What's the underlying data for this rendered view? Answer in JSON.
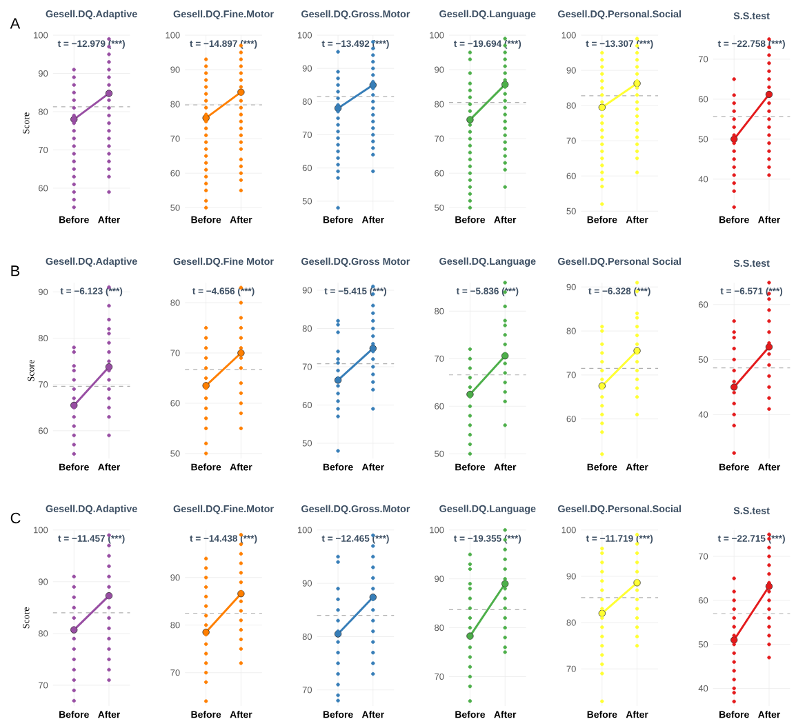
{
  "chart_data": [
    {
      "type": "line",
      "title": "Gesell.DQ.Adaptive",
      "ylabel": "Score",
      "categories": [
        "Before",
        "After"
      ],
      "ylim": [
        54,
        100
      ],
      "yticks": [
        60,
        70,
        80,
        90,
        100
      ],
      "grid": true,
      "marker": "circle",
      "annotations": [
        "t = −12.979 (***)",
        "A"
      ],
      "ref_lines": [
        {
          "axis": "y",
          "value": 81.3,
          "color": "#b0b0b0",
          "line_style": "dashed"
        }
      ],
      "series": [
        {
          "type": "scatter",
          "color": "#984ea3",
          "x": [
            "Before",
            "Before",
            "Before",
            "Before",
            "Before",
            "Before",
            "Before",
            "Before",
            "Before",
            "Before",
            "Before",
            "Before",
            "Before",
            "Before",
            "Before",
            "Before",
            "Before",
            "Before",
            "Before",
            "After",
            "After",
            "After",
            "After",
            "After",
            "After",
            "After",
            "After",
            "After",
            "After",
            "After",
            "After",
            "After",
            "After",
            "After",
            "After",
            "After",
            "After",
            "After"
          ],
          "values": [
            55,
            57,
            59,
            61,
            63,
            65,
            67,
            69,
            71,
            73,
            75,
            77,
            79,
            81,
            83,
            85,
            87,
            89,
            91,
            59,
            63,
            65,
            67,
            69,
            71,
            73,
            75,
            77,
            79,
            81,
            83,
            87,
            89,
            91,
            93,
            95,
            97,
            99
          ]
        },
        {
          "color": "#984ea3",
          "values": [
            78,
            84.8
          ]
        }
      ]
    },
    {
      "type": "line",
      "title": "Gesell.DQ.Fine.Motor",
      "categories": [
        "Before",
        "After"
      ],
      "ylim": [
        49,
        100
      ],
      "yticks": [
        50,
        60,
        70,
        80,
        90,
        100
      ],
      "grid": true,
      "marker": "circle",
      "annotations": [
        "t = −14.897 (***)"
      ],
      "ref_lines": [
        {
          "axis": "y",
          "value": 79.8,
          "color": "#b0b0b0",
          "line_style": "dashed"
        }
      ],
      "series": [
        {
          "type": "scatter",
          "color": "#ff7f00",
          "x": [
            "Before",
            "Before",
            "Before",
            "Before",
            "Before",
            "Before",
            "Before",
            "Before",
            "Before",
            "Before",
            "Before",
            "Before",
            "Before",
            "Before",
            "Before",
            "Before",
            "Before",
            "Before",
            "Before",
            "Before",
            "Before",
            "Before",
            "After",
            "After",
            "After",
            "After",
            "After",
            "After",
            "After",
            "After",
            "After",
            "After",
            "After",
            "After",
            "After",
            "After",
            "After",
            "After",
            "After",
            "After",
            "After",
            "After",
            "After"
          ],
          "values": [
            50,
            52,
            55,
            57,
            59,
            61,
            63,
            65,
            67,
            69,
            71,
            73,
            75,
            77,
            79,
            81,
            83,
            85,
            87,
            89,
            91,
            93,
            55,
            58,
            60,
            62,
            64,
            67,
            69,
            71,
            73,
            75,
            77,
            79,
            81,
            83,
            85,
            87,
            89,
            91,
            93,
            95,
            97
          ]
        },
        {
          "color": "#ff7f00",
          "values": [
            76,
            83.5
          ]
        }
      ]
    },
    {
      "type": "line",
      "title": "Gesell.DQ.Gross.Motor",
      "categories": [
        "Before",
        "After"
      ],
      "ylim": [
        47,
        100
      ],
      "yticks": [
        50,
        60,
        70,
        80,
        90,
        100
      ],
      "grid": true,
      "marker": "circle",
      "annotations": [
        "t = −13.492 (***)"
      ],
      "ref_lines": [
        {
          "axis": "y",
          "value": 81.5,
          "color": "#b0b0b0",
          "line_style": "dashed"
        }
      ],
      "series": [
        {
          "type": "scatter",
          "color": "#377eb8",
          "x": [
            "Before",
            "Before",
            "Before",
            "Before",
            "Before",
            "Before",
            "Before",
            "Before",
            "Before",
            "Before",
            "Before",
            "Before",
            "Before",
            "Before",
            "Before",
            "Before",
            "Before",
            "Before",
            "Before",
            "After",
            "After",
            "After",
            "After",
            "After",
            "After",
            "After",
            "After",
            "After",
            "After",
            "After",
            "After",
            "After",
            "After",
            "After",
            "After",
            "After",
            "After",
            "After"
          ],
          "values": [
            48,
            57,
            59,
            61,
            63,
            65,
            67,
            69,
            71,
            73,
            75,
            77,
            79,
            81,
            83,
            85,
            87,
            89,
            95,
            59,
            64,
            66,
            68,
            70,
            72,
            74,
            76,
            78,
            80,
            82,
            84,
            86,
            88,
            90,
            92,
            94,
            96,
            98
          ]
        },
        {
          "color": "#377eb8",
          "values": [
            78,
            85
          ]
        }
      ]
    },
    {
      "type": "line",
      "title": "Gesell.DQ.Language",
      "categories": [
        "Before",
        "After"
      ],
      "ylim": [
        49,
        100
      ],
      "yticks": [
        50,
        60,
        70,
        80,
        90,
        100
      ],
      "grid": true,
      "marker": "circle",
      "annotations": [
        "t = −19.694 (***)"
      ],
      "ref_lines": [
        {
          "axis": "y",
          "value": 80.5,
          "color": "#b0b0b0",
          "line_style": "dashed"
        }
      ],
      "series": [
        {
          "type": "scatter",
          "color": "#4daf4a",
          "x": [
            "Before",
            "Before",
            "Before",
            "Before",
            "Before",
            "Before",
            "Before",
            "Before",
            "Before",
            "Before",
            "Before",
            "Before",
            "Before",
            "Before",
            "Before",
            "Before",
            "Before",
            "Before",
            "Before",
            "Before",
            "Before",
            "Before",
            "After",
            "After",
            "After",
            "After",
            "After",
            "After",
            "After",
            "After",
            "After",
            "After",
            "After",
            "After",
            "After",
            "After",
            "After",
            "After",
            "After",
            "After",
            "After",
            "After",
            "After"
          ],
          "values": [
            50,
            52,
            54,
            56,
            58,
            60,
            62,
            64,
            66,
            68,
            70,
            72,
            74,
            76,
            78,
            80,
            82,
            84,
            86,
            89,
            93,
            95,
            56,
            61,
            63,
            65,
            67,
            69,
            71,
            73,
            75,
            77,
            79,
            81,
            83,
            85,
            87,
            89,
            91,
            93,
            95,
            97,
            99
          ]
        },
        {
          "color": "#4daf4a",
          "values": [
            75.5,
            85.7
          ]
        }
      ]
    },
    {
      "type": "line",
      "title": "Gesell.DQ.Personal.Social",
      "categories": [
        "Before",
        "After"
      ],
      "ylim": [
        50,
        100
      ],
      "yticks": [
        50,
        60,
        70,
        80,
        90,
        100
      ],
      "grid": true,
      "marker": "circle",
      "annotations": [
        "t = −13.307 (***)"
      ],
      "ref_lines": [
        {
          "axis": "y",
          "value": 82.8,
          "color": "#b0b0b0",
          "line_style": "dashed"
        }
      ],
      "series": [
        {
          "type": "scatter",
          "color": "#ffff33",
          "x": [
            "Before",
            "Before",
            "Before",
            "Before",
            "Before",
            "Before",
            "Before",
            "Before",
            "Before",
            "Before",
            "Before",
            "Before",
            "Before",
            "Before",
            "Before",
            "Before",
            "Before",
            "Before",
            "Before",
            "Before",
            "Before",
            "After",
            "After",
            "After",
            "After",
            "After",
            "After",
            "After",
            "After",
            "After",
            "After",
            "After",
            "After",
            "After",
            "After",
            "After",
            "After",
            "After",
            "After",
            "After"
          ],
          "values": [
            52,
            57,
            59,
            61,
            63,
            65,
            67,
            69,
            71,
            73,
            75,
            77,
            79,
            81,
            83,
            85,
            87,
            89,
            91,
            93,
            95,
            61,
            65,
            67,
            69,
            71,
            73,
            75,
            77,
            79,
            81,
            83,
            85,
            87,
            89,
            91,
            93,
            95,
            97,
            99
          ]
        },
        {
          "color": "#ffff33",
          "values": [
            79.5,
            86.3
          ]
        }
      ]
    },
    {
      "type": "line",
      "title": "S.S.test",
      "categories": [
        "Before",
        "After"
      ],
      "ylim": [
        32,
        76
      ],
      "yticks": [
        40,
        50,
        60,
        70
      ],
      "grid": true,
      "marker": "circle",
      "annotations": [
        "t = −22.758 (***)"
      ],
      "ref_lines": [
        {
          "axis": "y",
          "value": 55.6,
          "color": "#b0b0b0",
          "line_style": "dashed"
        }
      ],
      "series": [
        {
          "type": "scatter",
          "color": "#e41a1c",
          "x": [
            "Before",
            "Before",
            "Before",
            "Before",
            "Before",
            "Before",
            "Before",
            "Before",
            "Before",
            "Before",
            "Before",
            "Before",
            "Before",
            "Before",
            "Before",
            "After",
            "After",
            "After",
            "After",
            "After",
            "After",
            "After",
            "After",
            "After",
            "After",
            "After",
            "After",
            "After",
            "After",
            "After",
            "After",
            "After"
          ],
          "values": [
            33,
            37,
            39,
            41,
            43,
            45,
            47,
            49,
            51,
            53,
            55,
            57,
            59,
            61,
            65,
            41,
            43,
            45,
            47,
            49,
            51,
            53,
            55,
            57,
            59,
            63,
            65,
            67,
            69,
            71,
            73,
            75
          ]
        },
        {
          "color": "#e41a1c",
          "values": [
            50,
            61.2
          ]
        }
      ]
    },
    {
      "type": "line",
      "title": "Gesell.DQ.Adaptive",
      "ylabel": "Score",
      "categories": [
        "Before",
        "After"
      ],
      "ylim": [
        54,
        92
      ],
      "yticks": [
        60,
        70,
        80,
        90
      ],
      "grid": true,
      "marker": "circle",
      "annotations": [
        "t = −6.123 (***)",
        "B"
      ],
      "ref_lines": [
        {
          "axis": "y",
          "value": 69.6,
          "color": "#b0b0b0",
          "line_style": "dashed"
        }
      ],
      "series": [
        {
          "type": "scatter",
          "color": "#984ea3",
          "x": [
            "Before",
            "Before",
            "Before",
            "Before",
            "Before",
            "Before",
            "Before",
            "Before",
            "Before",
            "Before",
            "Before",
            "Before",
            "Before",
            "After",
            "After",
            "After",
            "After",
            "After",
            "After",
            "After",
            "After",
            "After",
            "After",
            "After",
            "After",
            "After",
            "After",
            "After"
          ],
          "values": [
            55,
            57,
            59,
            61,
            63,
            65,
            67,
            69,
            71,
            73,
            74,
            77,
            78,
            59,
            63,
            65,
            67,
            69,
            71,
            73,
            75,
            77,
            79,
            81,
            82,
            84,
            87,
            91
          ]
        },
        {
          "color": "#984ea3",
          "values": [
            65.5,
            73.8
          ]
        }
      ]
    },
    {
      "type": "line",
      "title": "Gesell.DQ.Fine Motor",
      "categories": [
        "Before",
        "After"
      ],
      "ylim": [
        49,
        84
      ],
      "yticks": [
        50,
        60,
        70,
        80
      ],
      "grid": true,
      "marker": "circle",
      "annotations": [
        "t = −4.656 (***)"
      ],
      "ref_lines": [
        {
          "axis": "y",
          "value": 66.7,
          "color": "#b0b0b0",
          "line_style": "dashed"
        }
      ],
      "series": [
        {
          "type": "scatter",
          "color": "#ff7f00",
          "x": [
            "Before",
            "Before",
            "Before",
            "Before",
            "Before",
            "Before",
            "Before",
            "Before",
            "Before",
            "Before",
            "Before",
            "Before",
            "Before",
            "After",
            "After",
            "After",
            "After",
            "After",
            "After",
            "After",
            "After",
            "After",
            "After",
            "After",
            "After",
            "After"
          ],
          "values": [
            50,
            52,
            55,
            57,
            59,
            61,
            63,
            65,
            67,
            69,
            71,
            73,
            75,
            55,
            58,
            60,
            62,
            64,
            67,
            69,
            71,
            73,
            75,
            77,
            80,
            83
          ]
        },
        {
          "color": "#ff7f00",
          "values": [
            63.5,
            70
          ]
        }
      ]
    },
    {
      "type": "line",
      "title": "Gesell.DQ.Gross Motor",
      "categories": [
        "Before",
        "After"
      ],
      "ylim": [
        46,
        92
      ],
      "yticks": [
        50,
        60,
        70,
        80,
        90
      ],
      "grid": true,
      "marker": "circle",
      "annotations": [
        "t = −5.415 (***)"
      ],
      "ref_lines": [
        {
          "axis": "y",
          "value": 70.8,
          "color": "#b0b0b0",
          "line_style": "dashed"
        }
      ],
      "series": [
        {
          "type": "scatter",
          "color": "#377eb8",
          "x": [
            "Before",
            "Before",
            "Before",
            "Before",
            "Before",
            "Before",
            "Before",
            "Before",
            "Before",
            "Before",
            "Before",
            "Before",
            "Before",
            "Before",
            "After",
            "After",
            "After",
            "After",
            "After",
            "After",
            "After",
            "After",
            "After",
            "After",
            "After",
            "After",
            "After",
            "After",
            "After"
          ],
          "values": [
            48,
            57,
            59,
            61,
            63,
            65,
            67,
            69,
            71,
            72,
            74,
            79,
            81,
            82,
            59,
            64,
            66,
            68,
            70,
            72,
            74,
            76,
            78,
            80,
            82,
            84,
            86,
            89,
            91
          ]
        },
        {
          "color": "#377eb8",
          "values": [
            66.5,
            74.8
          ]
        }
      ]
    },
    {
      "type": "line",
      "title": "Gesell.DQ.Language",
      "categories": [
        "Before",
        "After"
      ],
      "ylim": [
        49,
        86
      ],
      "yticks": [
        50,
        60,
        70,
        80
      ],
      "grid": true,
      "marker": "circle",
      "annotations": [
        "t = −5.836 (***)"
      ],
      "ref_lines": [
        {
          "axis": "y",
          "value": 66.6,
          "color": "#b0b0b0",
          "line_style": "dashed"
        }
      ],
      "series": [
        {
          "type": "scatter",
          "color": "#4daf4a",
          "x": [
            "Before",
            "Before",
            "Before",
            "Before",
            "Before",
            "Before",
            "Before",
            "Before",
            "Before",
            "Before",
            "Before",
            "Before",
            "After",
            "After",
            "After",
            "After",
            "After",
            "After",
            "After",
            "After",
            "After",
            "After",
            "After",
            "After",
            "After",
            "After"
          ],
          "values": [
            50,
            52,
            54,
            56,
            58,
            60,
            62,
            64,
            66,
            68,
            70,
            72,
            56,
            61,
            63,
            65,
            67,
            69,
            71,
            73,
            75,
            77,
            78,
            81,
            84,
            86
          ]
        },
        {
          "color": "#4daf4a",
          "values": [
            62.5,
            70.6
          ]
        }
      ]
    },
    {
      "type": "line",
      "title": "Gesell.DQ.Personal Social",
      "categories": [
        "Before",
        "After"
      ],
      "ylim": [
        51,
        91
      ],
      "yticks": [
        60,
        70,
        80,
        90
      ],
      "grid": true,
      "marker": "circle",
      "annotations": [
        "t = −6.328 (***)"
      ],
      "ref_lines": [
        {
          "axis": "y",
          "value": 71.5,
          "color": "#b0b0b0",
          "line_style": "dashed"
        }
      ],
      "series": [
        {
          "type": "scatter",
          "color": "#ffff33",
          "x": [
            "Before",
            "Before",
            "Before",
            "Before",
            "Before",
            "Before",
            "Before",
            "Before",
            "Before",
            "Before",
            "Before",
            "Before",
            "Before",
            "Before",
            "After",
            "After",
            "After",
            "After",
            "After",
            "After",
            "After",
            "After",
            "After",
            "After",
            "After",
            "After",
            "After",
            "After"
          ],
          "values": [
            52,
            57,
            59,
            61,
            63,
            65,
            67,
            69,
            71,
            73,
            75,
            77,
            80,
            81,
            61,
            65,
            67,
            69,
            71,
            73,
            75,
            77,
            79,
            81,
            83,
            84,
            89,
            91
          ]
        },
        {
          "color": "#ffff33",
          "values": [
            67.5,
            75.5
          ]
        }
      ]
    },
    {
      "type": "line",
      "title": "S.S.test",
      "categories": [
        "Before",
        "After"
      ],
      "ylim": [
        32,
        64
      ],
      "yticks": [
        40,
        50,
        60
      ],
      "grid": true,
      "marker": "circle",
      "annotations": [
        "t = −6.571 (***)"
      ],
      "ref_lines": [
        {
          "axis": "y",
          "value": 48.5,
          "color": "#b0b0b0",
          "line_style": "dashed"
        }
      ],
      "series": [
        {
          "type": "scatter",
          "color": "#e41a1c",
          "x": [
            "Before",
            "Before",
            "Before",
            "Before",
            "Before",
            "Before",
            "Before",
            "Before",
            "Before",
            "Before",
            "Before",
            "Before",
            "After",
            "After",
            "After",
            "After",
            "After",
            "After",
            "After",
            "After",
            "After",
            "After",
            "After",
            "After",
            "After"
          ],
          "values": [
            33,
            38,
            40,
            42,
            44,
            46,
            48,
            50,
            52,
            54,
            55,
            57,
            41,
            43,
            45,
            47,
            49,
            51,
            53,
            55,
            57,
            59,
            61,
            62,
            64
          ]
        },
        {
          "color": "#e41a1c",
          "values": [
            45,
            52.3
          ]
        }
      ]
    },
    {
      "type": "line",
      "title": "Gesell.DQ.Adaptive",
      "ylabel": "Score",
      "categories": [
        "Before",
        "After"
      ],
      "ylim": [
        66,
        100
      ],
      "yticks": [
        70,
        80,
        90,
        100
      ],
      "grid": true,
      "marker": "circle",
      "annotations": [
        "t = −11.457 (***)",
        "C"
      ],
      "ref_lines": [
        {
          "axis": "y",
          "value": 84,
          "color": "#b0b0b0",
          "line_style": "dashed"
        }
      ],
      "series": [
        {
          "type": "scatter",
          "color": "#984ea3",
          "x": [
            "Before",
            "Before",
            "Before",
            "Before",
            "Before",
            "Before",
            "Before",
            "Before",
            "Before",
            "Before",
            "Before",
            "Before",
            "Before",
            "After",
            "After",
            "After",
            "After",
            "After",
            "After",
            "After",
            "After",
            "After",
            "After",
            "After",
            "After",
            "After",
            "After",
            "After"
          ],
          "values": [
            67,
            69,
            71,
            73,
            75,
            77,
            79,
            81,
            83,
            85,
            87,
            89,
            91,
            71,
            73,
            75,
            77,
            79,
            81,
            83,
            85,
            87,
            89,
            91,
            93,
            95,
            97,
            99
          ]
        },
        {
          "color": "#984ea3",
          "values": [
            80.7,
            87.3
          ]
        }
      ]
    },
    {
      "type": "line",
      "title": "Gesell.DQ.Fine.Motor",
      "categories": [
        "Before",
        "After"
      ],
      "ylim": [
        63,
        100
      ],
      "yticks": [
        70,
        80,
        90
      ],
      "grid": true,
      "marker": "circle",
      "annotations": [
        "t = −14.438 (***)"
      ],
      "ref_lines": [
        {
          "axis": "y",
          "value": 82.5,
          "color": "#b0b0b0",
          "line_style": "dashed"
        }
      ],
      "series": [
        {
          "type": "scatter",
          "color": "#ff7f00",
          "x": [
            "Before",
            "Before",
            "Before",
            "Before",
            "Before",
            "Before",
            "Before",
            "Before",
            "Before",
            "Before",
            "Before",
            "Before",
            "Before",
            "Before",
            "Before",
            "After",
            "After",
            "After",
            "After",
            "After",
            "After",
            "After",
            "After",
            "After",
            "After",
            "After",
            "After",
            "After",
            "After"
          ],
          "values": [
            64,
            68,
            70,
            72,
            74,
            76,
            78,
            80,
            82,
            84,
            86,
            88,
            90,
            92,
            94,
            72,
            75,
            77,
            79,
            81,
            83,
            85,
            87,
            89,
            91,
            93,
            95,
            97,
            99
          ]
        },
        {
          "color": "#ff7f00",
          "values": [
            78.5,
            86.6
          ]
        }
      ]
    },
    {
      "type": "line",
      "title": "Gesell.DQ.Gross.Motor",
      "categories": [
        "Before",
        "After"
      ],
      "ylim": [
        67,
        100
      ],
      "yticks": [
        70,
        80,
        90,
        100
      ],
      "grid": true,
      "marker": "circle",
      "annotations": [
        "t = −12.465 (***)"
      ],
      "ref_lines": [
        {
          "axis": "y",
          "value": 84,
          "color": "#b0b0b0",
          "line_style": "dashed"
        }
      ],
      "series": [
        {
          "type": "scatter",
          "color": "#377eb8",
          "x": [
            "Before",
            "Before",
            "Before",
            "Before",
            "Before",
            "Before",
            "Before",
            "Before",
            "Before",
            "Before",
            "Before",
            "Before",
            "Before",
            "Before",
            "After",
            "After",
            "After",
            "After",
            "After",
            "After",
            "After",
            "After",
            "After",
            "After",
            "After",
            "After",
            "After",
            "After"
          ],
          "values": [
            68,
            69,
            71,
            73,
            75,
            77,
            79,
            81,
            83,
            85,
            87,
            89,
            94,
            95,
            73,
            75,
            77,
            79,
            81,
            83,
            85,
            87,
            89,
            91,
            93,
            95,
            97,
            99
          ]
        },
        {
          "color": "#377eb8",
          "values": [
            80.5,
            87.4
          ]
        }
      ]
    },
    {
      "type": "line",
      "title": "Gesell.DQ.Language",
      "categories": [
        "Before",
        "After"
      ],
      "ylim": [
        64,
        100
      ],
      "yticks": [
        70,
        80,
        90,
        100
      ],
      "grid": true,
      "marker": "circle",
      "annotations": [
        "t = −19.355 (***)"
      ],
      "ref_lines": [
        {
          "axis": "y",
          "value": 83.7,
          "color": "#b0b0b0",
          "line_style": "dashed"
        }
      ],
      "series": [
        {
          "type": "scatter",
          "color": "#4daf4a",
          "x": [
            "Before",
            "Before",
            "Before",
            "Before",
            "Before",
            "Before",
            "Before",
            "Before",
            "Before",
            "Before",
            "Before",
            "Before",
            "Before",
            "Before",
            "Before",
            "Before",
            "After",
            "After",
            "After",
            "After",
            "After",
            "After",
            "After",
            "After",
            "After",
            "After",
            "After",
            "After",
            "After",
            "After"
          ],
          "values": [
            65,
            68,
            70,
            72,
            74,
            76,
            78,
            80,
            82,
            84,
            86,
            88,
            89,
            92,
            93,
            95,
            75,
            76,
            78,
            80,
            82,
            84,
            86,
            88,
            90,
            92,
            94,
            96,
            98,
            100
          ]
        },
        {
          "color": "#4daf4a",
          "values": [
            78.3,
            89
          ]
        }
      ]
    },
    {
      "type": "line",
      "title": "Gesell.DQ.Personal.Social",
      "categories": [
        "Before",
        "After"
      ],
      "ylim": [
        62,
        100
      ],
      "yticks": [
        70,
        80,
        90,
        100
      ],
      "grid": true,
      "marker": "circle",
      "annotations": [
        "t = −11.719 (***)"
      ],
      "ref_lines": [
        {
          "axis": "y",
          "value": 85.4,
          "color": "#b0b0b0",
          "line_style": "dashed"
        }
      ],
      "series": [
        {
          "type": "scatter",
          "color": "#ffff33",
          "x": [
            "Before",
            "Before",
            "Before",
            "Before",
            "Before",
            "Before",
            "Before",
            "Before",
            "Before",
            "Before",
            "Before",
            "Before",
            "Before",
            "Before",
            "Before",
            "Before",
            "After",
            "After",
            "After",
            "After",
            "After",
            "After",
            "After",
            "After",
            "After",
            "After",
            "After",
            "After",
            "After"
          ],
          "values": [
            63,
            69,
            71,
            73,
            75,
            77,
            79,
            81,
            83,
            85,
            87,
            89,
            91,
            93,
            95,
            96,
            75,
            77,
            79,
            81,
            83,
            85,
            87,
            89,
            91,
            93,
            95,
            97,
            99
          ]
        },
        {
          "color": "#ffff33",
          "values": [
            82,
            88.6
          ]
        }
      ]
    },
    {
      "type": "line",
      "title": "S.S.test",
      "categories": [
        "Before",
        "After"
      ],
      "ylim": [
        36,
        76
      ],
      "yticks": [
        40,
        50,
        60,
        70
      ],
      "grid": true,
      "marker": "circle",
      "annotations": [
        "t = −22.715 (***)"
      ],
      "ref_lines": [
        {
          "axis": "y",
          "value": 57,
          "color": "#b0b0b0",
          "line_style": "dashed"
        }
      ],
      "series": [
        {
          "type": "scatter",
          "color": "#e41a1c",
          "x": [
            "Before",
            "Before",
            "Before",
            "Before",
            "Before",
            "Before",
            "Before",
            "Before",
            "Before",
            "Before",
            "Before",
            "Before",
            "Before",
            "Before",
            "Before",
            "After",
            "After",
            "After",
            "After",
            "After",
            "After",
            "After",
            "After",
            "After",
            "After",
            "After",
            "After",
            "After",
            "After",
            "After"
          ],
          "values": [
            37,
            39,
            40,
            42,
            44,
            46,
            48,
            50,
            52,
            54,
            56,
            58,
            60,
            62,
            65,
            47,
            50,
            52,
            54,
            56,
            58,
            60,
            62,
            64,
            66,
            68,
            70,
            72,
            74,
            75
          ]
        },
        {
          "color": "#e41a1c",
          "values": [
            51,
            63.2
          ]
        }
      ]
    }
  ]
}
